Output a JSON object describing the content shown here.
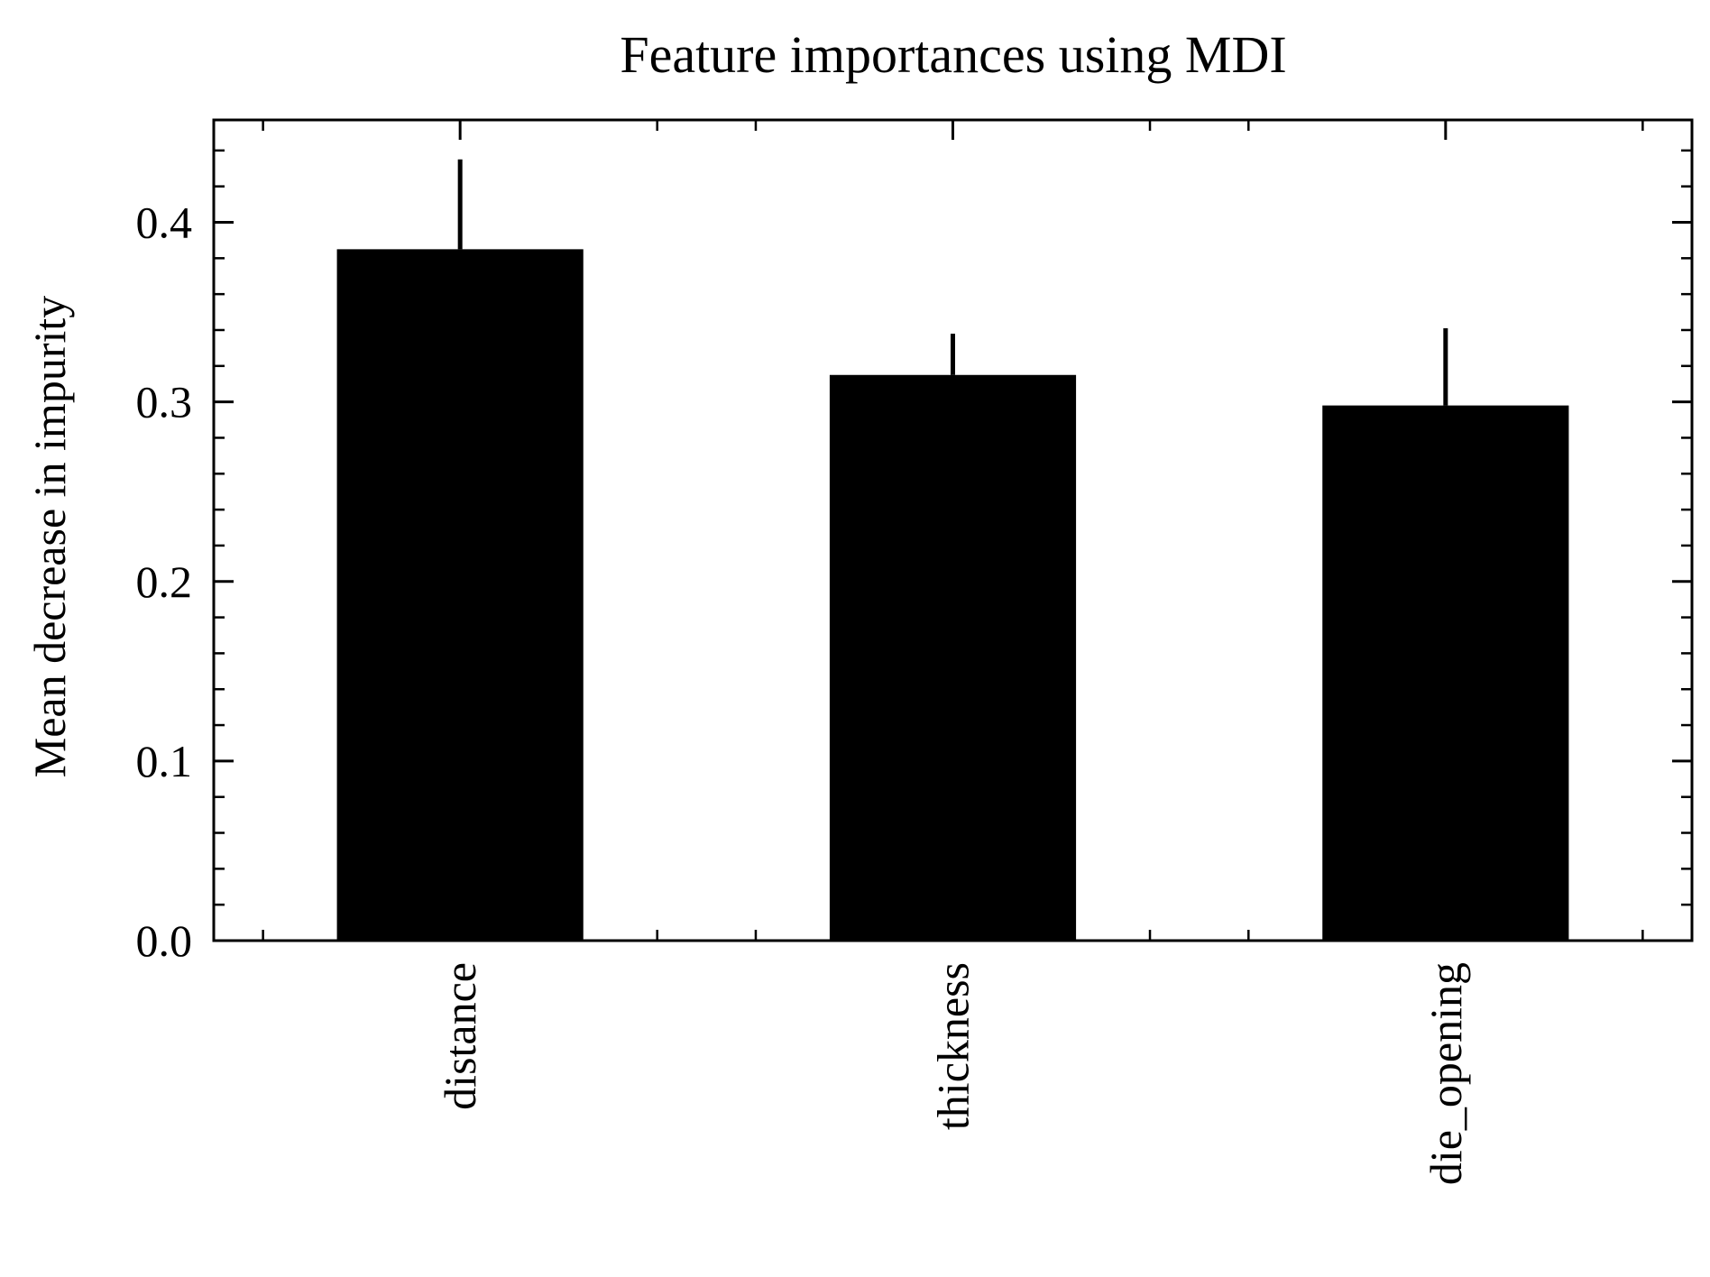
{
  "chart_data": {
    "type": "bar",
    "title": "Feature importances using MDI",
    "ylabel": "Mean decrease in impurity",
    "xlabel": "",
    "categories": [
      "distance",
      "thickness",
      "die_opening"
    ],
    "values": [
      0.385,
      0.315,
      0.298
    ],
    "errors": [
      0.05,
      0.023,
      0.043
    ],
    "ylim": [
      0,
      0.457
    ],
    "yticks": [
      0.0,
      0.1,
      0.2,
      0.3,
      0.4
    ],
    "ytick_labels": [
      "0.0",
      "0.1",
      "0.2",
      "0.3",
      "0.4"
    ],
    "grid": false,
    "bar_color": "#000000",
    "error_color": "#000000"
  }
}
